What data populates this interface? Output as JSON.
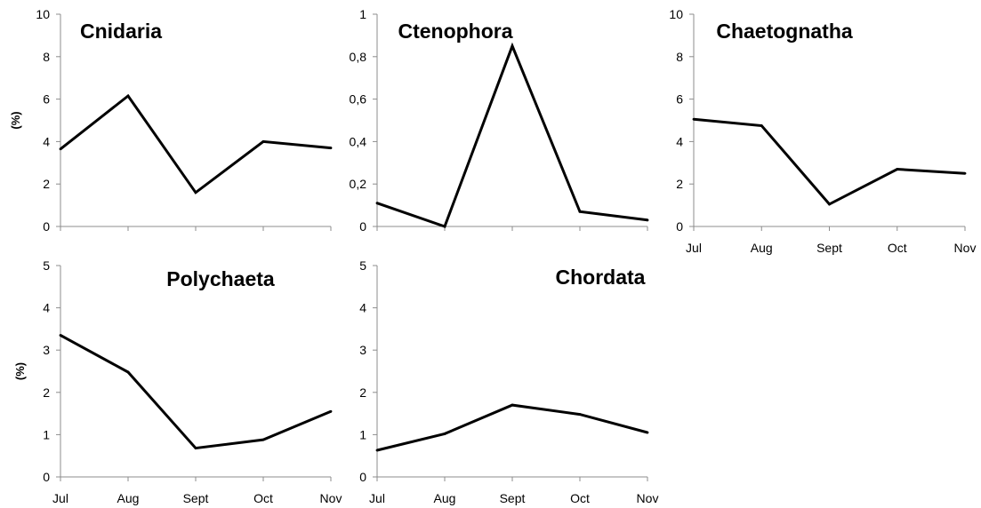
{
  "chart_data": [
    {
      "type": "line",
      "title": "Cnidaria",
      "ylabel": "(%)",
      "xlabel": "",
      "categories": [
        "Jul",
        "Aug",
        "Sept",
        "Oct",
        "Nov"
      ],
      "show_category_labels": false,
      "ylim": [
        0,
        10
      ],
      "yticks": [
        "0",
        "2",
        "4",
        "6",
        "8",
        "10"
      ],
      "values": [
        3.65,
        6.15,
        1.6,
        4.0,
        3.7
      ],
      "grid": false,
      "line_color": "#000000"
    },
    {
      "type": "line",
      "title": "Ctenophora",
      "ylabel": "",
      "xlabel": "",
      "categories": [
        "Jul",
        "Aug",
        "Sept",
        "Oct",
        "Nov"
      ],
      "show_category_labels": false,
      "ylim": [
        0,
        1
      ],
      "yticks": [
        "0",
        "0,2",
        "0,4",
        "0,6",
        "0,8",
        "1"
      ],
      "values": [
        0.11,
        0.0,
        0.85,
        0.07,
        0.03
      ],
      "grid": false,
      "line_color": "#000000"
    },
    {
      "type": "line",
      "title": "Chaetognatha",
      "ylabel": "",
      "xlabel": "",
      "categories": [
        "Jul",
        "Aug",
        "Sept",
        "Oct",
        "Nov"
      ],
      "show_category_labels": true,
      "ylim": [
        0,
        10
      ],
      "yticks": [
        "0",
        "2",
        "4",
        "6",
        "8",
        "10"
      ],
      "values": [
        5.05,
        4.75,
        1.05,
        2.7,
        2.5
      ],
      "grid": false,
      "line_color": "#000000"
    },
    {
      "type": "line",
      "title": "Polychaeta",
      "ylabel": "(%)",
      "xlabel": "",
      "categories": [
        "Jul",
        "Aug",
        "Sept",
        "Oct",
        "Nov"
      ],
      "show_category_labels": true,
      "ylim": [
        0,
        5
      ],
      "yticks": [
        "0",
        "1",
        "2",
        "3",
        "4",
        "5"
      ],
      "values": [
        3.35,
        2.48,
        0.68,
        0.88,
        1.55
      ],
      "grid": false,
      "line_color": "#000000"
    },
    {
      "type": "line",
      "title": "Chordata",
      "ylabel": "",
      "xlabel": "",
      "categories": [
        "Jul",
        "Aug",
        "Sept",
        "Oct",
        "Nov"
      ],
      "show_category_labels": true,
      "ylim": [
        0,
        5
      ],
      "yticks": [
        "0",
        "1",
        "2",
        "3",
        "4",
        "5"
      ],
      "values": [
        0.63,
        1.02,
        1.7,
        1.48,
        1.05
      ],
      "grid": false,
      "line_color": "#000000"
    }
  ]
}
